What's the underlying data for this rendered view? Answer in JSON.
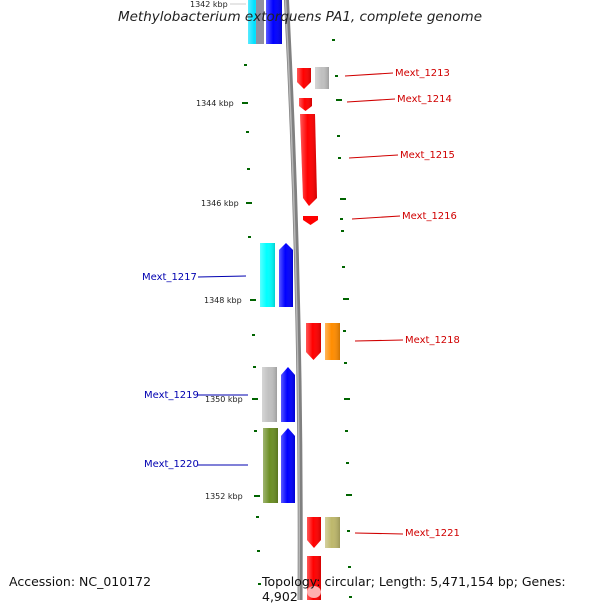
{
  "title": "Methylobacterium extorquens PA1, complete genome",
  "accession_text": "Accession: NC_010172",
  "topology_text": "Topology: circular; Length: 5,471,154 bp; Genes: 4,902",
  "kbp_labels": [
    {
      "text": "1342 kbp",
      "kbp": 1342
    },
    {
      "text": "1344 kbp",
      "kbp": 1344
    },
    {
      "text": "1346 kbp",
      "kbp": 1346
    },
    {
      "text": "1348 kbp",
      "kbp": 1348
    },
    {
      "text": "1350 kbp",
      "kbp": 1350
    },
    {
      "text": "1352 kbp",
      "kbp": 1352
    }
  ],
  "genes": [
    {
      "name": "Mext_1213",
      "strand": "reverse",
      "color": "#ff0000",
      "cog_color": "#c0c0c0"
    },
    {
      "name": "Mext_1214",
      "strand": "reverse",
      "color": "#ff0000",
      "cog_color": null
    },
    {
      "name": "Mext_1215",
      "strand": "reverse",
      "color": "#ff0000",
      "cog_color": null
    },
    {
      "name": "Mext_1216",
      "strand": "reverse",
      "color": "#ff0000",
      "cog_color": null
    },
    {
      "name": "Mext_1217",
      "strand": "forward",
      "color": "#0000ff",
      "cog_color": "#00ffff"
    },
    {
      "name": "Mext_1218",
      "strand": "reverse",
      "color": "#ff0000",
      "cog_color": "#ff8c00"
    },
    {
      "name": "Mext_1219",
      "strand": "forward",
      "color": "#0000ff",
      "cog_color": "#c0c0c0"
    },
    {
      "name": "Mext_1220",
      "strand": "forward",
      "color": "#0000ff",
      "cog_color": "#6b8e23"
    },
    {
      "name": "Mext_1221",
      "strand": "reverse",
      "color": "#ff0000",
      "cog_color": "#bdb76b"
    }
  ],
  "colors": {
    "forward_gene": "#0000ff",
    "reverse_gene": "#ff0000",
    "backbone": "#808080",
    "tick": "#006400",
    "forward_label": "#0000b0",
    "reverse_label": "#d00000"
  }
}
